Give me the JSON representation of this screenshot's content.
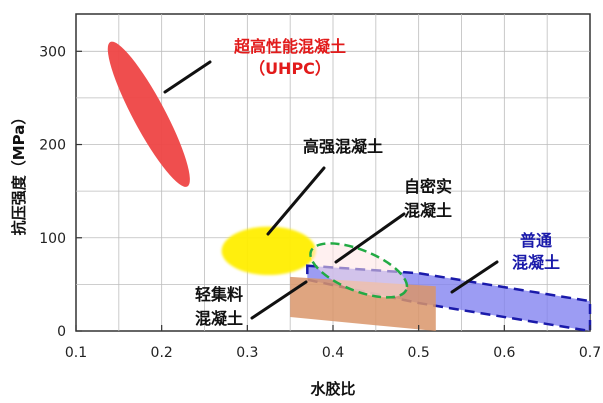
{
  "chart_data": {
    "type": "scatter",
    "title": "",
    "xlabel": "水胶比",
    "ylabel": "抗压强度（MPa）",
    "xlim": [
      0.1,
      0.7
    ],
    "ylim": [
      0,
      340
    ],
    "xticks": [
      "0.1",
      "0.2",
      "0.3",
      "0.4",
      "0.5",
      "0.6",
      "0.7"
    ],
    "yticks": [
      "0",
      "100",
      "200",
      "300"
    ],
    "grid": true,
    "series": [
      {
        "name": "超高性能混凝土（UHPC）",
        "label_lines": [
          "超高性能混凝土",
          "（UHPC）"
        ],
        "color": "#ee4444",
        "shape": "ellipse",
        "x_range": [
          0.14,
          0.23
        ],
        "y_range": [
          155,
          310
        ],
        "label_color": "#e21b1b"
      },
      {
        "name": "高强混凝土",
        "label_lines": [
          "高强混凝土"
        ],
        "color": "#ffee00",
        "shape": "ellipse",
        "x_range": [
          0.27,
          0.38
        ],
        "y_range": [
          60,
          112
        ],
        "label_color": "#111111"
      },
      {
        "name": "自密实混凝土",
        "label_lines": [
          "自密实",
          "混凝土"
        ],
        "color": "#ffe3e3",
        "stroke": "#22aa44",
        "dashed": true,
        "shape": "ellipse",
        "x_range": [
          0.37,
          0.49
        ],
        "y_range": [
          30,
          100
        ],
        "label_color": "#111111"
      },
      {
        "name": "普通混凝土",
        "label_lines": [
          "普通",
          "混凝土"
        ],
        "color": "#8080f0",
        "stroke": "#1a1aaa",
        "dashed": true,
        "shape": "band",
        "upper": [
          [
            0.37,
            70
          ],
          [
            0.5,
            62
          ],
          [
            0.7,
            32
          ]
        ],
        "lower": [
          [
            0.37,
            55
          ],
          [
            0.5,
            30
          ],
          [
            0.7,
            0
          ]
        ],
        "label_color": "#1a1aaa"
      },
      {
        "name": "轻集料混凝土",
        "label_lines": [
          "轻集料",
          "混凝土"
        ],
        "color": "#d9956a",
        "shape": "band",
        "upper": [
          [
            0.35,
            58
          ],
          [
            0.52,
            48
          ]
        ],
        "lower": [
          [
            0.35,
            15
          ],
          [
            0.52,
            0
          ]
        ],
        "label_color": "#111111"
      }
    ]
  }
}
